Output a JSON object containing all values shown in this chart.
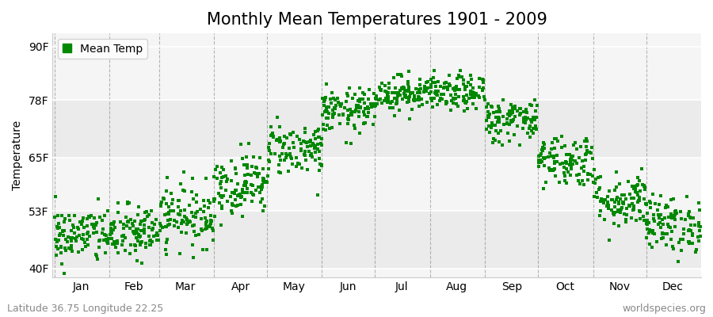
{
  "title": "Monthly Mean Temperatures 1901 - 2009",
  "ylabel": "Temperature",
  "ytick_labels": [
    "40F",
    "53F",
    "65F",
    "78F",
    "90F"
  ],
  "ytick_values": [
    40,
    53,
    65,
    78,
    90
  ],
  "ylim": [
    38,
    93
  ],
  "xlim": [
    0,
    366
  ],
  "months": [
    "Jan",
    "Feb",
    "Mar",
    "Apr",
    "May",
    "Jun",
    "Jul",
    "Aug",
    "Sep",
    "Oct",
    "Nov",
    "Dec"
  ],
  "month_start_days": [
    1,
    32,
    60,
    91,
    121,
    152,
    182,
    213,
    244,
    274,
    305,
    335
  ],
  "month_mid_days": [
    16,
    46,
    75,
    106,
    136,
    167,
    197,
    228,
    259,
    289,
    320,
    350
  ],
  "mean_temps_F": [
    47.5,
    48.0,
    52.0,
    59.0,
    67.0,
    75.5,
    79.5,
    79.5,
    73.5,
    64.5,
    55.5,
    50.0
  ],
  "std_temps_F": [
    3.2,
    3.2,
    3.5,
    3.5,
    3.0,
    2.5,
    2.0,
    2.0,
    2.5,
    3.0,
    3.2,
    3.2
  ],
  "n_years": 109,
  "marker_color": "#008800",
  "marker_size": 3,
  "bg_color": "#ffffff",
  "plot_bg_color": "#f5f5f5",
  "band_colors": [
    "#ebebeb",
    "#f5f5f5"
  ],
  "legend_label": "Mean Temp",
  "footer_left": "Latitude 36.75 Longitude 22.25",
  "footer_right": "worldspecies.org",
  "title_fontsize": 15,
  "axis_fontsize": 10,
  "tick_fontsize": 10,
  "footer_fontsize": 9,
  "dashed_line_color": "#888888"
}
